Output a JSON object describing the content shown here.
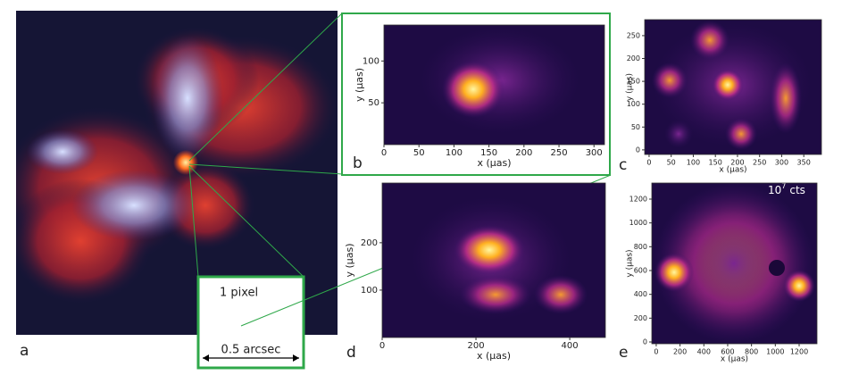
{
  "panel_a": {
    "label": "a",
    "inset_text": "1 pixel",
    "scale_text": "0.5 arcsec"
  },
  "panels": [
    {
      "label": "b",
      "xlabel": "x (μas)",
      "ylabel": "y (μas)",
      "xlim": [
        0,
        315
      ],
      "ylim": [
        0,
        143
      ],
      "xticks": [
        0,
        50,
        100,
        150,
        200,
        250,
        300
      ],
      "yticks": [
        50,
        100
      ]
    },
    {
      "label": "c",
      "xlabel": "x (μas)",
      "ylabel": "y (μas)",
      "xlim": [
        -10,
        390
      ],
      "ylim": [
        -10,
        285
      ],
      "xticks": [
        0,
        50,
        100,
        150,
        200,
        250,
        300,
        350
      ],
      "yticks": [
        0,
        50,
        100,
        150,
        200,
        250
      ]
    },
    {
      "label": "d",
      "xlabel": "x (μas)",
      "ylabel": "y (μas)",
      "xlim": [
        0,
        476
      ],
      "ylim": [
        0,
        326
      ],
      "xticks": [
        0,
        200,
        400
      ],
      "yticks": [
        100,
        200
      ]
    },
    {
      "label": "e",
      "xlabel": "x (μas)",
      "ylabel": "y (μas)",
      "xlim": [
        -37,
        1350
      ],
      "ylim": [
        -15,
        1335
      ],
      "xticks": [
        0,
        200,
        400,
        600,
        800,
        1000,
        1200
      ],
      "yticks": [
        0,
        200,
        400,
        600,
        800,
        1000,
        1200
      ],
      "note": {
        "base": "10",
        "exp": "7",
        "unit": "cts"
      }
    }
  ]
}
